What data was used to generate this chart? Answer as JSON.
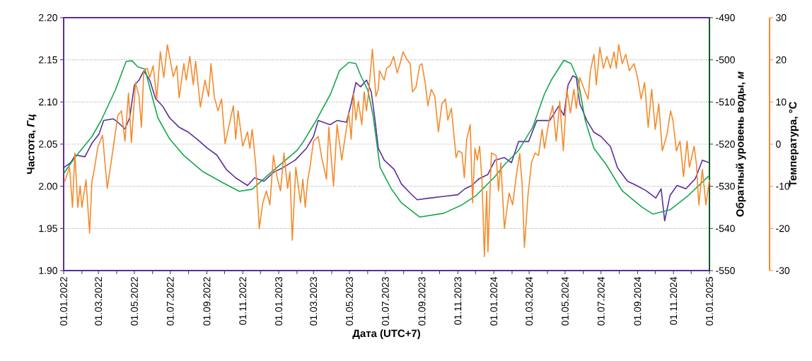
{
  "chart_data": {
    "type": "line",
    "xlabel": "Дата (UTC+7)",
    "ylabel": "Частота, *Гц*",
    "y2label": "Обратный уровень воды, *м*",
    "y3label": "Температура, °C",
    "grid": "y",
    "xlim": [
      "2022-01-01",
      "2025-01-01"
    ],
    "xticks": [
      {
        "value": "2022-01-01",
        "label": "01.01.2022"
      },
      {
        "value": "2022-02-01",
        "label": null
      },
      {
        "value": "2022-03-01",
        "label": "01.03.2022"
      },
      {
        "value": "2022-04-01",
        "label": null
      },
      {
        "value": "2022-05-01",
        "label": "01.05.2022"
      },
      {
        "value": "2022-06-01",
        "label": null
      },
      {
        "value": "2022-07-01",
        "label": "01.07.2022"
      },
      {
        "value": "2022-08-01",
        "label": null
      },
      {
        "value": "2022-09-01",
        "label": "01.09.2022"
      },
      {
        "value": "2022-10-01",
        "label": null
      },
      {
        "value": "2022-11-01",
        "label": "01.11.2022"
      },
      {
        "value": "2022-12-01",
        "label": null
      },
      {
        "value": "2023-01-01",
        "label": "01.01.2023"
      },
      {
        "value": "2023-02-01",
        "label": null
      },
      {
        "value": "2023-03-01",
        "label": "01.03.2023"
      },
      {
        "value": "2023-04-01",
        "label": null
      },
      {
        "value": "2023-05-01",
        "label": "01.05.2023"
      },
      {
        "value": "2023-06-01",
        "label": null
      },
      {
        "value": "2023-07-01",
        "label": "01.07.2023"
      },
      {
        "value": "2023-08-01",
        "label": null
      },
      {
        "value": "2023-09-01",
        "label": "01.09.2023"
      },
      {
        "value": "2023-10-01",
        "label": null
      },
      {
        "value": "2023-11-01",
        "label": "01.11.2023"
      },
      {
        "value": "2023-12-01",
        "label": null
      },
      {
        "value": "2024-01-01",
        "label": "01.01.2024"
      },
      {
        "value": "2024-02-01",
        "label": null
      },
      {
        "value": "2024-03-01",
        "label": "01.03.2024"
      },
      {
        "value": "2024-04-01",
        "label": null
      },
      {
        "value": "2024-05-01",
        "label": "01.05.2024"
      },
      {
        "value": "2024-06-01",
        "label": null
      },
      {
        "value": "2024-07-01",
        "label": "01.07.2024"
      },
      {
        "value": "2024-08-01",
        "label": null
      },
      {
        "value": "2024-09-01",
        "label": "01.09.2024"
      },
      {
        "value": "2024-10-01",
        "label": null
      },
      {
        "value": "2024-11-01",
        "label": "01.11.2024"
      },
      {
        "value": "2024-12-01",
        "label": null
      },
      {
        "value": "2025-01-01",
        "label": "01.01.2025"
      }
    ],
    "ylim": [
      1.9,
      2.2
    ],
    "yticks": [
      {
        "value": 1.9,
        "label": "1.90"
      },
      {
        "value": 1.95,
        "label": "1.95"
      },
      {
        "value": 2.0,
        "label": "2.00"
      },
      {
        "value": 2.05,
        "label": "2.05"
      },
      {
        "value": 2.1,
        "label": "2.10"
      },
      {
        "value": 2.15,
        "label": "2.15"
      },
      {
        "value": 2.2,
        "label": "2.20"
      }
    ],
    "y2lim": [
      -550,
      -490
    ],
    "y2ticks": [
      -550,
      -540,
      -530,
      -520,
      -510,
      -500,
      -490
    ],
    "y3lim": [
      -30,
      30
    ],
    "y3ticks": [
      -30,
      -20,
      -10,
      0,
      10,
      20,
      30
    ],
    "series": [
      {
        "axis": "y",
        "color": "#5b2d9e",
        "x": [
          "2022-01-01",
          "2022-01-13",
          "2022-01-21",
          "2022-02-06",
          "2022-02-18",
          "2022-03-02",
          "2022-03-10",
          "2022-03-26",
          "2022-04-03",
          "2022-04-15",
          "2022-04-23",
          "2022-05-01",
          "2022-05-09",
          "2022-05-17",
          "2022-05-27",
          "2022-06-06",
          "2022-06-18",
          "2022-06-30",
          "2022-07-16",
          "2022-08-01",
          "2022-08-17",
          "2022-09-02",
          "2022-09-18",
          "2022-10-04",
          "2022-10-20",
          "2022-11-09",
          "2022-11-21",
          "2022-12-07",
          "2022-12-24",
          "2023-01-08",
          "2023-01-29",
          "2023-02-17",
          "2023-03-01",
          "2023-03-09",
          "2023-03-29",
          "2023-04-10",
          "2023-04-26",
          "2023-05-04",
          "2023-05-12",
          "2023-05-20",
          "2023-05-30",
          "2023-06-07",
          "2023-06-13",
          "2023-06-19",
          "2023-06-29",
          "2023-07-16",
          "2023-07-28",
          "2023-08-12",
          "2023-08-24",
          "2023-09-14",
          "2023-10-08",
          "2023-11-01",
          "2023-11-13",
          "2023-11-25",
          "2023-12-07",
          "2023-12-22",
          "2024-01-03",
          "2024-01-19",
          "2024-01-31",
          "2024-02-12",
          "2024-02-29",
          "2024-03-14",
          "2024-04-05",
          "2024-04-20",
          "2024-04-29",
          "2024-05-06",
          "2024-05-14",
          "2024-05-20",
          "2024-05-26",
          "2024-06-07",
          "2024-06-19",
          "2024-07-01",
          "2024-07-17",
          "2024-07-29",
          "2024-08-15",
          "2024-08-30",
          "2024-09-15",
          "2024-10-02",
          "2024-10-11",
          "2024-10-17",
          "2024-10-26",
          "2024-11-07",
          "2024-11-22",
          "2024-12-08",
          "2024-12-20",
          "2025-01-01"
        ],
        "values": [
          2.022,
          2.028,
          2.037,
          2.035,
          2.051,
          2.062,
          2.078,
          2.08,
          2.076,
          2.068,
          2.081,
          2.12,
          2.126,
          2.137,
          2.126,
          2.104,
          2.095,
          2.081,
          2.07,
          2.064,
          2.055,
          2.045,
          2.037,
          2.02,
          2.01,
          2.001,
          2.01,
          2.006,
          2.017,
          2.022,
          2.031,
          2.045,
          2.059,
          2.078,
          2.073,
          2.078,
          2.076,
          2.098,
          2.123,
          2.118,
          2.126,
          2.112,
          2.081,
          2.045,
          2.031,
          2.02,
          2.003,
          1.992,
          1.984,
          1.986,
          1.988,
          1.99,
          1.997,
          2.001,
          2.009,
          2.014,
          2.031,
          2.034,
          2.028,
          2.053,
          2.053,
          2.078,
          2.078,
          2.095,
          2.084,
          2.12,
          2.131,
          2.129,
          2.098,
          2.078,
          2.064,
          2.059,
          2.047,
          2.022,
          2.006,
          2.001,
          1.995,
          1.986,
          1.997,
          1.959,
          1.989,
          2.001,
          1.997,
          2.009,
          2.031,
          2.028
        ]
      },
      {
        "axis": "y2",
        "color": "#14a84b",
        "x": [
          "2022-01-01",
          "2022-01-21",
          "2022-02-18",
          "2022-03-06",
          "2022-03-30",
          "2022-04-17",
          "2022-04-27",
          "2022-05-07",
          "2022-05-19",
          "2022-05-28",
          "2022-06-10",
          "2022-06-30",
          "2022-07-24",
          "2022-08-25",
          "2022-09-26",
          "2022-10-26",
          "2022-11-17",
          "2022-12-15",
          "2023-02-01",
          "2023-02-10",
          "2023-03-06",
          "2023-03-30",
          "2023-04-14",
          "2023-04-30",
          "2023-05-12",
          "2023-05-20",
          "2023-06-01",
          "2023-06-10",
          "2023-06-22",
          "2023-07-11",
          "2023-07-28",
          "2023-08-28",
          "2023-10-08",
          "2023-11-08",
          "2023-12-02",
          "2024-01-03",
          "2024-01-19",
          "2024-02-12",
          "2024-03-07",
          "2024-03-27",
          "2024-04-08",
          "2024-04-29",
          "2024-05-11",
          "2024-05-23",
          "2024-06-04",
          "2024-06-19",
          "2024-07-10",
          "2024-08-06",
          "2024-09-08",
          "2024-09-27",
          "2024-10-26",
          "2024-11-26",
          "2025-01-01"
        ],
        "values": [
          -527,
          -523,
          -518.2,
          -514.3,
          -507.1,
          -500.4,
          -500.2,
          -501.7,
          -502.2,
          -507.1,
          -513.8,
          -518.8,
          -522.7,
          -526.5,
          -529,
          -531.2,
          -530.7,
          -527.2,
          -521.5,
          -519.8,
          -514.3,
          -508.1,
          -502.6,
          -500.6,
          -500.9,
          -503.7,
          -507.1,
          -513.1,
          -525.5,
          -530.6,
          -533.9,
          -537.3,
          -536.4,
          -534.4,
          -532.2,
          -527.7,
          -524.9,
          -521.5,
          -516,
          -508.1,
          -504.7,
          -500.1,
          -500.9,
          -504.7,
          -514.3,
          -521,
          -524.9,
          -531.1,
          -534.9,
          -536.6,
          -535.6,
          -532.2,
          -527.4
        ]
      },
      {
        "axis": "y3",
        "color": "#f58a2a",
        "x": [
          "2022-01-03",
          "2022-01-11",
          "2022-01-16",
          "2022-01-20",
          "2022-01-25",
          "2022-01-29",
          "2022-02-01",
          "2022-02-08",
          "2022-02-14",
          "2022-02-18",
          "2022-02-22",
          "2022-02-28",
          "2022-03-08",
          "2022-03-16",
          "2022-03-26",
          "2022-04-03",
          "2022-04-09",
          "2022-04-15",
          "2022-04-21",
          "2022-04-26",
          "2022-05-03",
          "2022-05-09",
          "2022-05-13",
          "2022-05-17",
          "2022-05-23",
          "2022-05-27",
          "2022-06-02",
          "2022-06-08",
          "2022-06-14",
          "2022-06-20",
          "2022-06-26",
          "2022-07-02",
          "2022-07-06",
          "2022-07-12",
          "2022-07-16",
          "2022-07-24",
          "2022-07-28",
          "2022-08-03",
          "2022-08-09",
          "2022-08-13",
          "2022-08-21",
          "2022-08-29",
          "2022-09-04",
          "2022-09-08",
          "2022-09-14",
          "2022-09-20",
          "2022-09-26",
          "2022-10-02",
          "2022-10-08",
          "2022-10-16",
          "2022-10-20",
          "2022-10-24",
          "2022-11-01",
          "2022-11-09",
          "2022-11-13",
          "2022-11-17",
          "2022-11-23",
          "2022-11-29",
          "2022-12-05",
          "2022-12-11",
          "2022-12-17",
          "2022-12-23",
          "2022-12-29",
          "2023-01-04",
          "2023-01-10",
          "2023-01-16",
          "2023-01-20",
          "2023-01-24",
          "2023-01-30",
          "2023-02-07",
          "2023-02-11",
          "2023-02-15",
          "2023-02-19",
          "2023-02-23",
          "2023-03-01",
          "2023-03-09",
          "2023-03-15",
          "2023-03-23",
          "2023-03-27",
          "2023-04-04",
          "2023-04-10",
          "2023-04-18",
          "2023-04-22",
          "2023-04-30",
          "2023-05-04",
          "2023-05-08",
          "2023-05-12",
          "2023-05-16",
          "2023-05-22",
          "2023-05-26",
          "2023-05-30",
          "2023-06-03",
          "2023-06-09",
          "2023-06-15",
          "2023-06-19",
          "2023-06-21",
          "2023-06-29",
          "2023-07-03",
          "2023-07-09",
          "2023-07-15",
          "2023-07-21",
          "2023-07-25",
          "2023-07-31",
          "2023-08-06",
          "2023-08-12",
          "2023-08-16",
          "2023-08-22",
          "2023-08-28",
          "2023-09-01",
          "2023-09-07",
          "2023-09-11",
          "2023-09-17",
          "2023-09-23",
          "2023-09-29",
          "2023-10-05",
          "2023-10-11",
          "2023-10-15",
          "2023-10-21",
          "2023-10-29",
          "2023-11-02",
          "2023-11-08",
          "2023-11-12",
          "2023-11-16",
          "2023-11-22",
          "2023-11-26",
          "2023-11-30",
          "2023-12-04",
          "2023-12-08",
          "2023-12-12",
          "2023-12-16",
          "2023-12-20",
          "2023-12-22",
          "2023-12-28",
          "2024-01-05",
          "2024-01-09",
          "2024-01-13",
          "2024-01-19",
          "2024-01-27",
          "2024-02-02",
          "2024-02-08",
          "2024-02-14",
          "2024-02-18",
          "2024-02-22",
          "2024-02-28",
          "2024-03-05",
          "2024-03-11",
          "2024-03-17",
          "2024-03-23",
          "2024-03-27",
          "2024-04-04",
          "2024-04-10",
          "2024-04-16",
          "2024-04-22",
          "2024-04-28",
          "2024-05-04",
          "2024-05-10",
          "2024-05-16",
          "2024-05-20",
          "2024-05-26",
          "2024-06-01",
          "2024-06-09",
          "2024-06-13",
          "2024-06-19",
          "2024-06-23",
          "2024-06-29",
          "2024-07-05",
          "2024-07-11",
          "2024-07-17",
          "2024-07-23",
          "2024-07-27",
          "2024-07-31",
          "2024-08-06",
          "2024-08-12",
          "2024-08-18",
          "2024-08-26",
          "2024-09-01",
          "2024-09-07",
          "2024-09-13",
          "2024-09-19",
          "2024-09-25",
          "2024-10-01",
          "2024-10-07",
          "2024-10-13",
          "2024-10-21",
          "2024-10-27",
          "2024-10-31",
          "2024-11-06",
          "2024-11-12",
          "2024-11-18",
          "2024-11-24",
          "2024-11-28",
          "2024-12-06",
          "2024-12-10",
          "2024-12-14",
          "2024-12-20",
          "2024-12-26",
          "2025-01-01"
        ],
        "values": [
          -8.8,
          -5.5,
          -15,
          -2.1,
          -15,
          -9.9,
          -15,
          -8.5,
          -21.1,
          -8.8,
          -6,
          -0.7,
          2.1,
          -10.5,
          -1,
          6.8,
          7.9,
          0.7,
          12.1,
          0.4,
          14.6,
          11.3,
          4,
          17.4,
          18,
          15.8,
          18.6,
          10.7,
          21.9,
          15.8,
          23.6,
          19.1,
          16,
          18.6,
          11,
          19.1,
          15.2,
          20.8,
          14.1,
          19.7,
          8.8,
          15.2,
          11.3,
          19.1,
          11,
          7.9,
          10.7,
          0.1,
          4,
          9.1,
          1.2,
          7.9,
          -0.5,
          2.9,
          -1,
          3.5,
          -4.9,
          -20,
          -13.9,
          -11.1,
          -14.4,
          -2.7,
          -7.7,
          -11.1,
          -2.1,
          -10.5,
          -6.6,
          -22.8,
          -5.5,
          -13.9,
          -8.3,
          -15,
          -8.8,
          -5.5,
          0.7,
          1.8,
          -3.2,
          -8.3,
          4,
          -9.9,
          4.6,
          -3.8,
          0.1,
          7.4,
          1.2,
          11.9,
          5.7,
          10.2,
          4.6,
          12.4,
          7.9,
          13,
          22.5,
          11.3,
          13,
          17.4,
          15.2,
          18,
          18.6,
          20.8,
          16.9,
          18.6,
          21.9,
          20.2,
          19.1,
          12.4,
          13.5,
          18.6,
          19.1,
          14.1,
          9.1,
          13,
          11.3,
          2.9,
          9.6,
          10.7,
          5.7,
          8.5,
          -3.2,
          -1.6,
          -2.1,
          -8,
          1.2,
          4.6,
          -13.9,
          -1,
          -3.8,
          -0.5,
          -8.8,
          -26.7,
          -11.1,
          -25.6,
          -2.1,
          -2.7,
          -11.1,
          -4.4,
          -20,
          -11.6,
          -14.4,
          -7.7,
          -2.2,
          -9.4,
          -24.5,
          -12.2,
          -4.4,
          -2.1,
          -2.7,
          3.5,
          -1,
          5.7,
          9.1,
          0.7,
          10.2,
          -1.6,
          13,
          7.4,
          13,
          8.5,
          15.8,
          13.5,
          10.7,
          17.4,
          21.3,
          14.1,
          23,
          18,
          20.8,
          18,
          21.9,
          18,
          23.6,
          19.1,
          21.3,
          17.4,
          19.1,
          15.8,
          10.7,
          14.6,
          4,
          13,
          3.5,
          9.6,
          -1.6,
          2.3,
          7.9,
          5.7,
          -1.6,
          0.7,
          -7.7,
          0.7,
          -5.5,
          -0.5,
          -4.9,
          -14.4,
          -6,
          -14.4,
          -8.5
        ]
      }
    ]
  }
}
